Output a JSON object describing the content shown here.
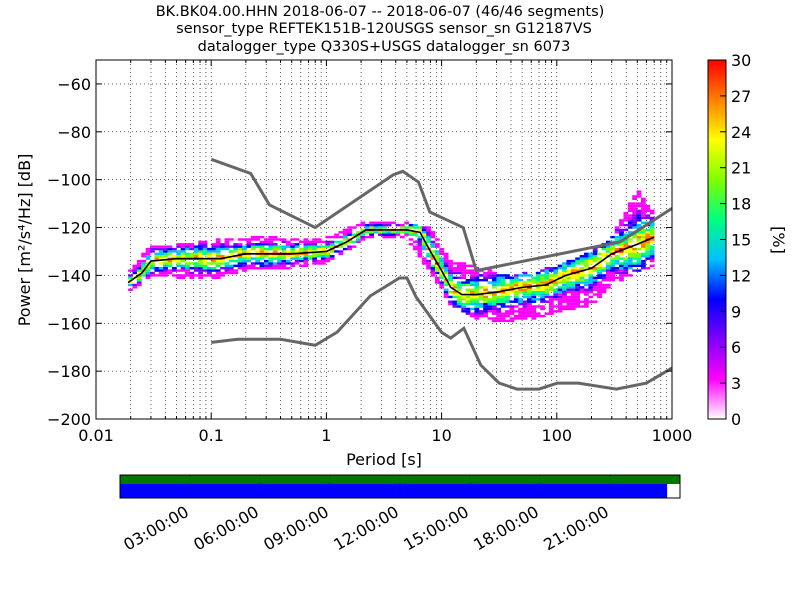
{
  "title_lines": [
    "BK.BK04.00.HHN   2018-06-07 -- 2018-06-07  (46/46 segments)",
    "sensor_type REFTEK151B-120USGS sensor_sn G12187VS",
    "datalogger_type Q330S+USGS datalogger_sn 6073"
  ],
  "colors": {
    "pdf_cmap": [
      "#ffffff",
      "#ff00ff",
      "#8000ff",
      "#0000ff",
      "#00c0ff",
      "#00ff80",
      "#80ff00",
      "#ffff00",
      "#ff8000",
      "#ff0000"
    ],
    "noise_model": "#666666",
    "mode_line": "#000000",
    "data_coverage": "#0000ff",
    "segment_coverage": "#007700"
  },
  "chart_data": {
    "type": "heatmap",
    "xlabel": "Period [s]",
    "ylabel": "Power [m²/s⁴/Hz] [dB]",
    "x_scale": "log",
    "xlim": [
      0.01,
      1000
    ],
    "ylim": [
      -200,
      -50
    ],
    "x_ticks": [
      0.01,
      0.1,
      1,
      10,
      100,
      1000
    ],
    "x_tick_labels": [
      "0.01",
      "0.1",
      "1",
      "10",
      "100",
      "1000"
    ],
    "y_ticks": [
      -200,
      -180,
      -160,
      -140,
      -120,
      -100,
      -80,
      -60
    ],
    "y_tick_labels": [
      "−200",
      "−180",
      "−160",
      "−140",
      "−120",
      "−100",
      "−80",
      "−60"
    ],
    "grid": true,
    "colorbar": {
      "label": "[%]",
      "range": [
        0,
        30
      ],
      "ticks": [
        0,
        3,
        6,
        9,
        12,
        15,
        18,
        21,
        24,
        27,
        30
      ]
    },
    "mode_curve": {
      "period": [
        0.019,
        0.025,
        0.03,
        0.05,
        0.08,
        0.12,
        0.2,
        0.3,
        0.5,
        1,
        1.5,
        2.2,
        3,
        5,
        6.5,
        8,
        10,
        12,
        15,
        20,
        30,
        50,
        80,
        120,
        200,
        300,
        500,
        700
      ],
      "power": [
        -143,
        -139,
        -134,
        -133,
        -133,
        -133,
        -131,
        -131,
        -131,
        -130,
        -126,
        -121,
        -121,
        -121,
        -122,
        -130,
        -138,
        -145,
        -148,
        -148,
        -147,
        -145,
        -144,
        -140,
        -137,
        -131,
        -127,
        -124
      ]
    },
    "noise_model_high": {
      "period": [
        0.1,
        0.22,
        0.32,
        0.8,
        3.8,
        4.6,
        6.3,
        7.9,
        15.4,
        20,
        354.8,
        1000
      ],
      "power": [
        -91.5,
        -97.4,
        -110.5,
        -120,
        -98,
        -96.5,
        -101,
        -113.5,
        -120,
        -138,
        -126,
        -112
      ]
    },
    "noise_model_low": {
      "period": [
        0.1,
        0.17,
        0.4,
        0.8,
        1.24,
        2.4,
        4.3,
        5,
        6,
        10,
        12,
        15.6,
        21.9,
        31.6,
        45,
        70,
        101,
        154,
        328,
        600,
        1000
      ],
      "power": [
        -168,
        -166.7,
        -166.7,
        -169.2,
        -163.7,
        -148.6,
        -141.1,
        -141.1,
        -149,
        -163.8,
        -166.2,
        -162.1,
        -177.5,
        -185,
        -187.5,
        -187.5,
        -185,
        -185,
        -187.5,
        -185,
        -178.7
      ]
    },
    "psd_spread": [
      {
        "period": 0.019,
        "lo": -146,
        "hi": -140
      },
      {
        "period": 0.03,
        "lo": -140,
        "hi": -128
      },
      {
        "period": 0.05,
        "lo": -140,
        "hi": -128
      },
      {
        "period": 0.1,
        "lo": -141,
        "hi": -126
      },
      {
        "period": 0.2,
        "lo": -137,
        "hi": -125
      },
      {
        "period": 0.3,
        "lo": -137,
        "hi": -124
      },
      {
        "period": 0.5,
        "lo": -136,
        "hi": -126
      },
      {
        "period": 1,
        "lo": -134,
        "hi": -125
      },
      {
        "period": 2.2,
        "lo": -124,
        "hi": -118
      },
      {
        "period": 5,
        "lo": -124,
        "hi": -119
      },
      {
        "period": 8,
        "lo": -138,
        "hi": -121
      },
      {
        "period": 12,
        "lo": -152,
        "hi": -135
      },
      {
        "period": 20,
        "lo": -157,
        "hi": -137
      },
      {
        "period": 30,
        "lo": -159,
        "hi": -140
      },
      {
        "period": 50,
        "lo": -158,
        "hi": -140
      },
      {
        "period": 100,
        "lo": -155,
        "hi": -137
      },
      {
        "period": 200,
        "lo": -152,
        "hi": -131
      },
      {
        "period": 300,
        "lo": -143,
        "hi": -125
      },
      {
        "period": 500,
        "lo": -138,
        "hi": -105
      },
      {
        "period": 700,
        "lo": -135,
        "hi": -115
      }
    ]
  },
  "coverage": {
    "time_labels": [
      "03:00:00",
      "06:00:00",
      "09:00:00",
      "12:00:00",
      "15:00:00",
      "18:00:00",
      "21:00:00"
    ],
    "data_fraction": 0.977,
    "segment_fraction": 1.0
  }
}
